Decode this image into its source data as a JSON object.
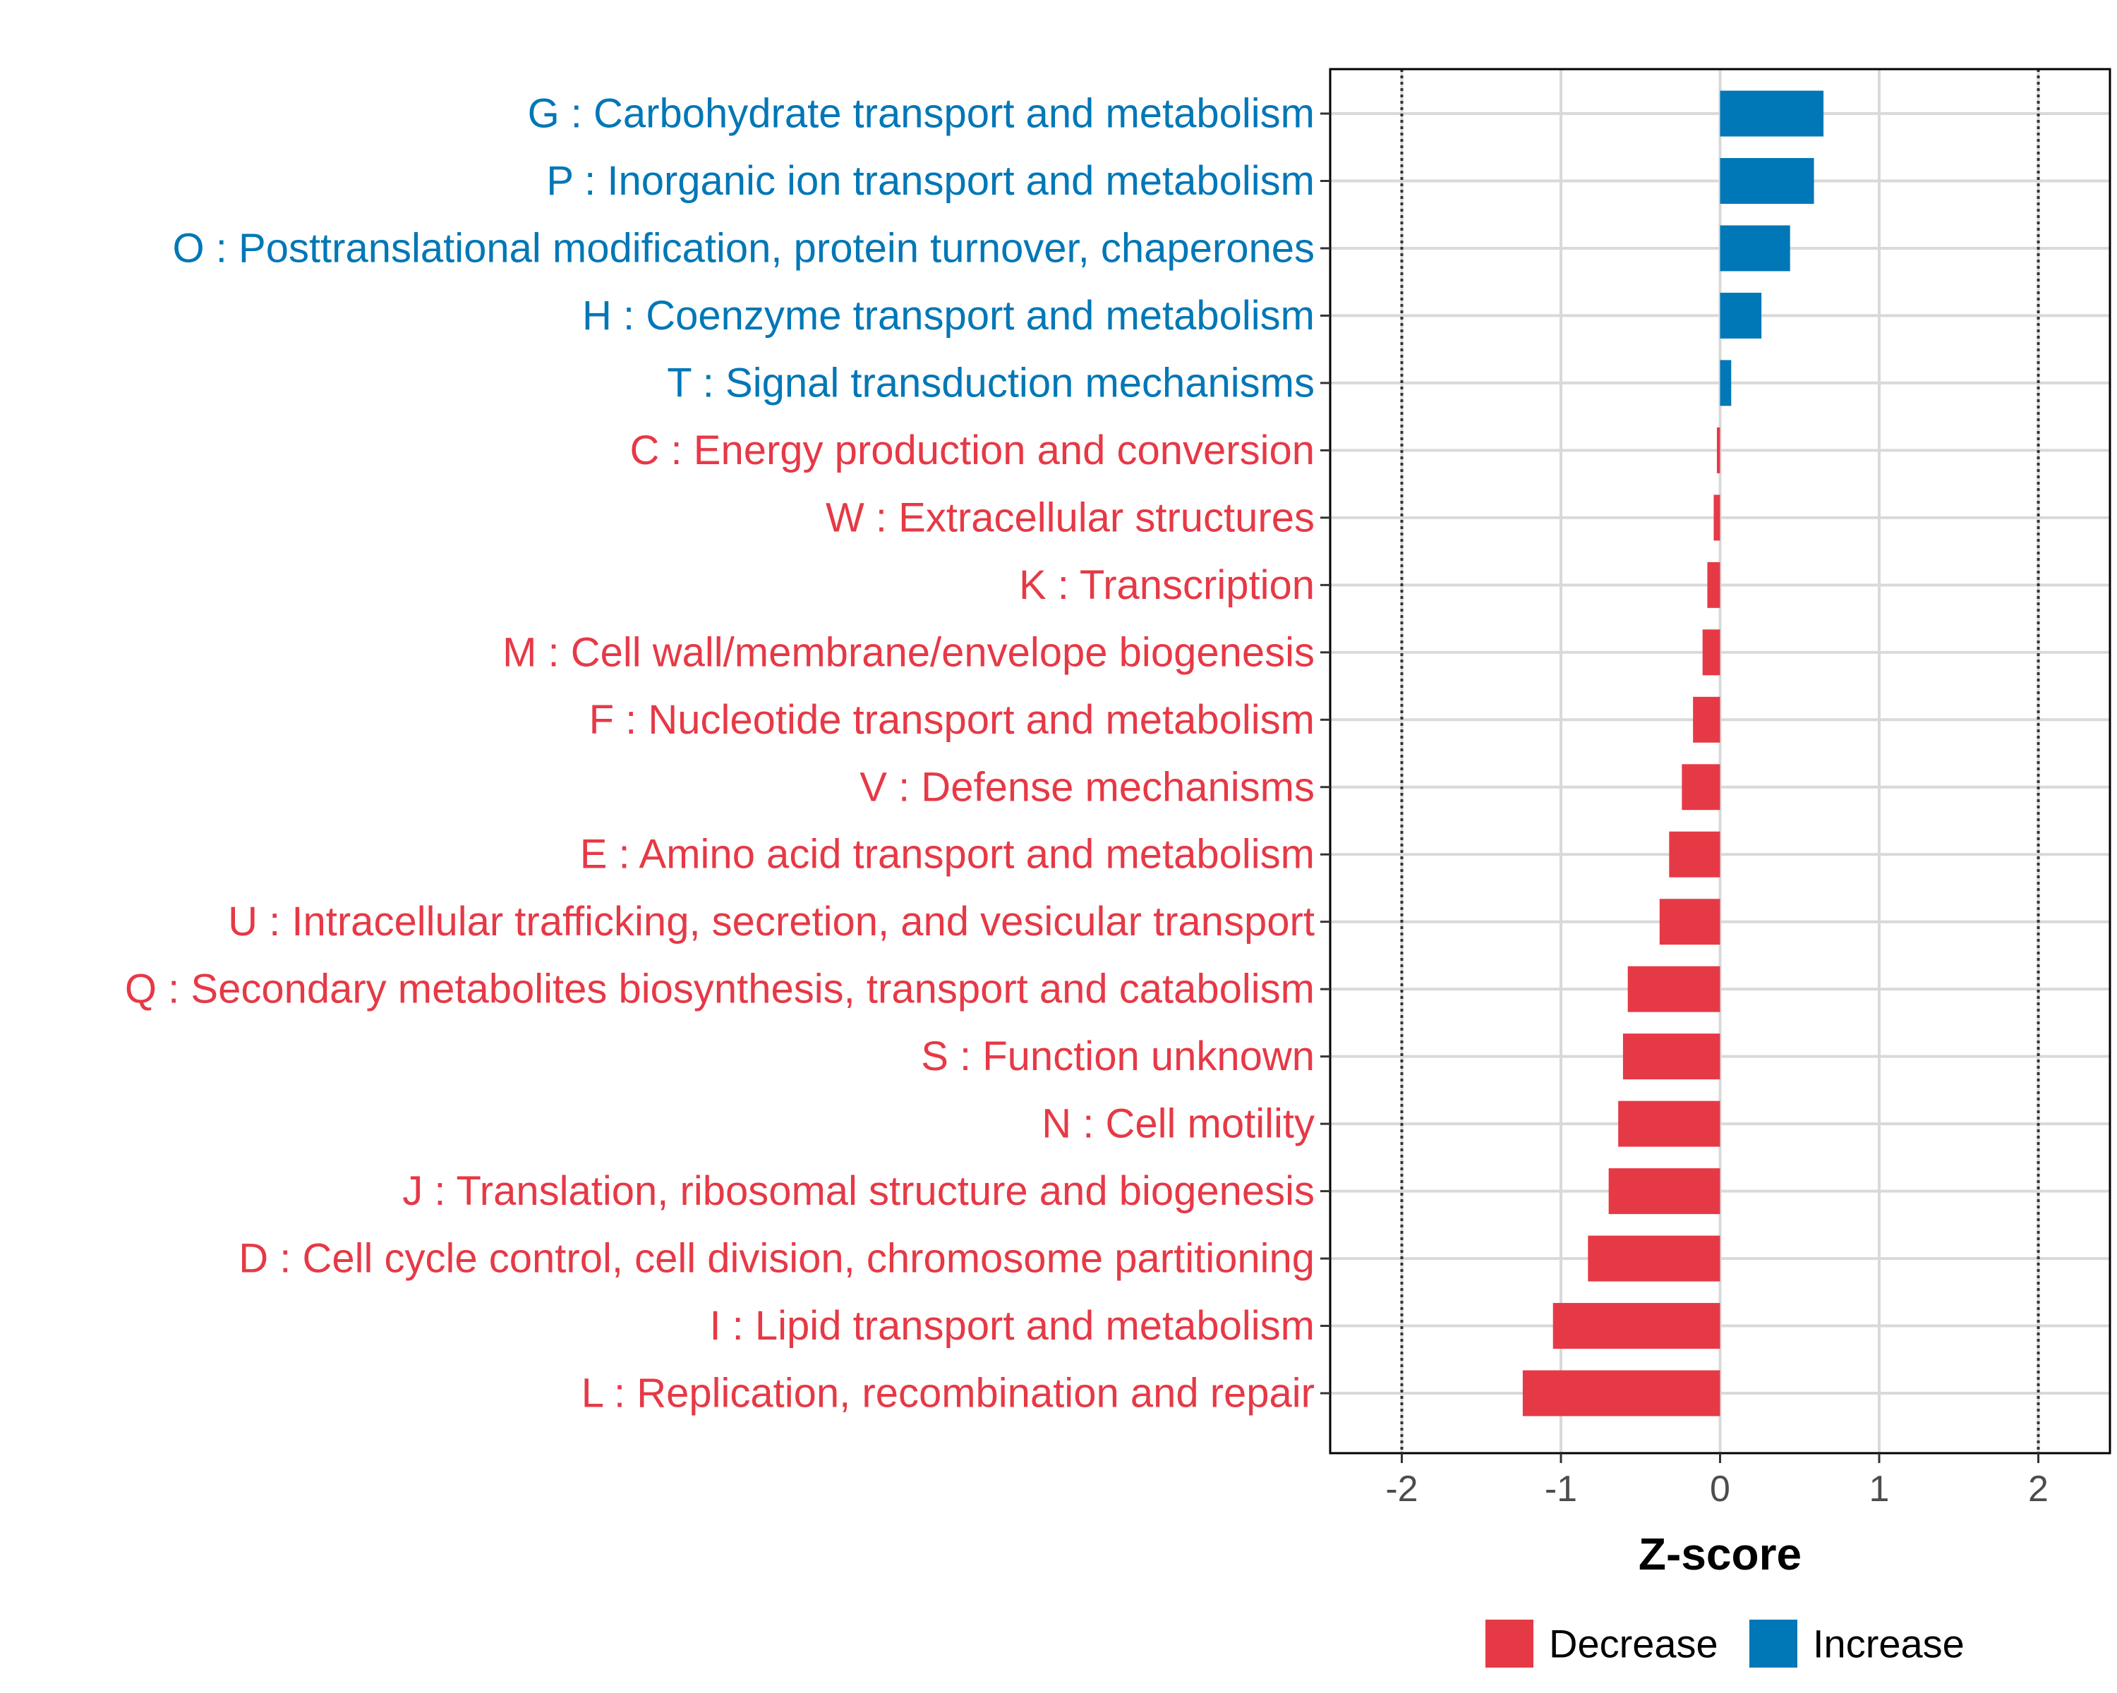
{
  "chart_data": {
    "type": "bar",
    "orientation": "horizontal",
    "title": "",
    "xlabel": "Z-score",
    "ylabel": "",
    "xlim": [
      -2.45,
      2.45
    ],
    "xticks": [
      -2,
      -1,
      0,
      1,
      2
    ],
    "xtick_labels": [
      "-2",
      "-1",
      "0",
      "1",
      "2"
    ],
    "reference_lines": [
      -2,
      2
    ],
    "grid": true,
    "categories": [
      "G : Carbohydrate transport and metabolism",
      "P : Inorganic ion transport and metabolism",
      "O : Posttranslational modification, protein turnover, chaperones",
      "H : Coenzyme transport and metabolism",
      "T : Signal transduction mechanisms",
      "C : Energy production and conversion",
      "W : Extracellular structures",
      "K : Transcription",
      "M : Cell wall/membrane/envelope biogenesis",
      "F : Nucleotide transport and metabolism",
      "V : Defense mechanisms",
      "E : Amino acid transport and metabolism",
      "U : Intracellular trafficking, secretion, and vesicular transport",
      "Q : Secondary metabolites biosynthesis, transport and catabolism",
      "S : Function unknown",
      "N : Cell motility",
      "J : Translation, ribosomal structure and biogenesis",
      "D : Cell cycle control, cell division, chromosome partitioning",
      "I : Lipid transport and metabolism",
      "L : Replication, recombination and repair"
    ],
    "values": [
      0.65,
      0.59,
      0.44,
      0.26,
      0.07,
      -0.02,
      -0.04,
      -0.08,
      -0.11,
      -0.17,
      -0.24,
      -0.32,
      -0.38,
      -0.58,
      -0.61,
      -0.64,
      -0.7,
      -0.83,
      -1.05,
      -1.24
    ],
    "groups": [
      "Increase",
      "Increase",
      "Increase",
      "Increase",
      "Increase",
      "Decrease",
      "Decrease",
      "Decrease",
      "Decrease",
      "Decrease",
      "Decrease",
      "Decrease",
      "Decrease",
      "Decrease",
      "Decrease",
      "Decrease",
      "Decrease",
      "Decrease",
      "Decrease",
      "Decrease"
    ],
    "legend": {
      "position": "bottom",
      "entries": [
        {
          "label": "Decrease",
          "color": "#E63946"
        },
        {
          "label": "Increase",
          "color": "#0077B6"
        }
      ]
    },
    "colors": {
      "Decrease": "#E63946",
      "Increase": "#0077B6"
    }
  }
}
